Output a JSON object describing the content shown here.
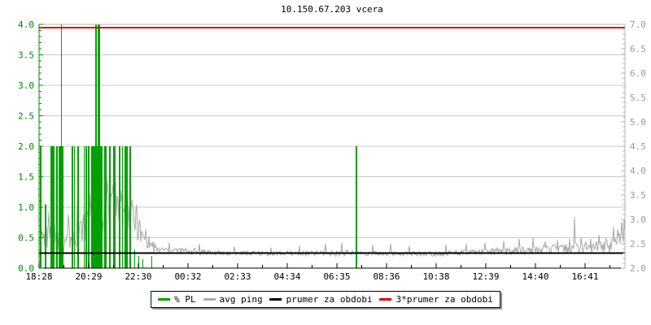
{
  "chart_data": {
    "type": "line",
    "title": "10.150.67.203 vcera",
    "x_tick_labels": [
      "18:28",
      "20:29",
      "22:30",
      "00:32",
      "02:33",
      "04:34",
      "06:35",
      "08:36",
      "10:38",
      "12:39",
      "14:40",
      "16:41"
    ],
    "left_axis": {
      "series": "% PL",
      "min": 0,
      "max": 4,
      "step": 0.5,
      "tick_labels": [
        "4.0",
        "3.5",
        "3.0",
        "2.5",
        "2.0",
        "1.5",
        "1.0",
        "0.5",
        "0.0"
      ],
      "color": "#008800"
    },
    "right_axis": {
      "series": "avg ping",
      "min": 2,
      "max": 7,
      "step": 0.5,
      "tick_labels": [
        "7.0",
        "6.5",
        "6.0",
        "5.5",
        "5.0",
        "4.5",
        "4.0",
        "3.5",
        "3.0",
        "2.5",
        "2.0"
      ],
      "color": "#9a9a9a"
    },
    "grid": true,
    "legend_position": "bottom-center",
    "legend": [
      {
        "label": "% PL",
        "color": "#00a000"
      },
      {
        "label": "avg ping",
        "color": "#aaaaaa"
      },
      {
        "label": "prumer za obdobi",
        "color": "#000000"
      },
      {
        "label": "3*prumer za obdobi",
        "color": "#e00000"
      }
    ],
    "series": [
      {
        "name": "% PL",
        "type": "bars",
        "axis": "left",
        "color": "#00a000",
        "bars": [
          [
            1,
            2,
            2
          ],
          [
            7,
            2,
            1.05
          ],
          [
            14,
            5,
            2
          ],
          [
            21,
            2,
            2
          ],
          [
            24,
            6,
            2
          ],
          [
            27,
            1,
            4
          ],
          [
            40,
            2,
            2
          ],
          [
            43,
            1,
            2
          ],
          [
            47,
            2,
            2
          ],
          [
            55,
            1,
            2
          ],
          [
            57,
            2,
            2
          ],
          [
            60,
            2,
            2
          ],
          [
            64,
            14,
            2
          ],
          [
            69,
            2,
            4
          ],
          [
            72,
            3,
            4
          ],
          [
            80,
            3,
            2
          ],
          [
            86,
            2,
            2
          ],
          [
            91,
            3,
            2
          ],
          [
            98,
            2,
            2
          ],
          [
            102,
            1,
            2
          ],
          [
            105,
            4,
            2
          ],
          [
            111,
            2,
            2
          ],
          [
            117,
            1,
            0.3
          ],
          [
            122,
            1,
            0.2
          ],
          [
            127,
            1,
            0.15
          ],
          [
            138,
            1,
            0.2
          ],
          [
            389,
            2,
            2
          ]
        ]
      },
      {
        "name": "avg ping",
        "type": "noisy-line",
        "axis": "right",
        "color": "#a8a8a8",
        "segments": [
          [
            0,
            8,
            2.7,
            2.6,
            0.18
          ],
          [
            8,
            20,
            2.6,
            2.65,
            0.28
          ],
          [
            20,
            32,
            2.65,
            2.6,
            0.3
          ],
          [
            32,
            46,
            2.6,
            2.7,
            0.28
          ],
          [
            46,
            56,
            2.7,
            2.85,
            0.3
          ],
          [
            56,
            64,
            2.85,
            3.4,
            0.4
          ],
          [
            64,
            71,
            3.4,
            4.0,
            0.35
          ],
          [
            71,
            79,
            4.0,
            3.2,
            0.45
          ],
          [
            79,
            90,
            3.2,
            3.1,
            0.45
          ],
          [
            90,
            97,
            3.3,
            3.4,
            0.4
          ],
          [
            97,
            106,
            3.4,
            2.95,
            0.4
          ],
          [
            106,
            113,
            2.95,
            3.15,
            0.35
          ],
          [
            113,
            126,
            3.15,
            2.65,
            0.3
          ],
          [
            126,
            142,
            2.65,
            2.42,
            0.14
          ],
          [
            142,
            210,
            2.38,
            2.33,
            0.07
          ],
          [
            210,
            330,
            2.31,
            2.3,
            0.05
          ],
          [
            330,
            400,
            2.3,
            2.31,
            0.06
          ],
          [
            400,
            480,
            2.3,
            2.3,
            0.05
          ],
          [
            480,
            555,
            2.3,
            2.33,
            0.06
          ],
          [
            555,
            610,
            2.33,
            2.37,
            0.08
          ],
          [
            610,
            648,
            2.37,
            2.4,
            0.09
          ],
          [
            648,
            668,
            2.4,
            2.42,
            0.11
          ],
          [
            668,
            700,
            2.42,
            2.45,
            0.12
          ],
          [
            700,
            714,
            2.45,
            2.6,
            0.15
          ],
          [
            714,
            720,
            2.6,
            2.75,
            0.18
          ]
        ],
        "spikes": [
          [
            12,
            3.15
          ],
          [
            17,
            3.4
          ],
          [
            36,
            3.1
          ],
          [
            47,
            3.35
          ],
          [
            70,
            4.35
          ],
          [
            75,
            4.2
          ],
          [
            84,
            3.85
          ],
          [
            94,
            3.75
          ],
          [
            101,
            3.6
          ],
          [
            109,
            3.45
          ],
          [
            120,
            3.3
          ],
          [
            131,
            2.8
          ],
          [
            160,
            2.52
          ],
          [
            197,
            2.5
          ],
          [
            240,
            2.44
          ],
          [
            285,
            2.42
          ],
          [
            320,
            2.46
          ],
          [
            352,
            2.5
          ],
          [
            372,
            2.52
          ],
          [
            410,
            2.48
          ],
          [
            432,
            2.5
          ],
          [
            455,
            2.46
          ],
          [
            500,
            2.48
          ],
          [
            525,
            2.5
          ],
          [
            548,
            2.52
          ],
          [
            571,
            2.56
          ],
          [
            590,
            2.6
          ],
          [
            607,
            2.62
          ],
          [
            622,
            2.55
          ],
          [
            637,
            2.58
          ],
          [
            652,
            2.6
          ],
          [
            658,
            3.05
          ],
          [
            666,
            2.62
          ],
          [
            678,
            2.6
          ],
          [
            688,
            2.68
          ],
          [
            697,
            2.6
          ],
          [
            706,
            2.85
          ],
          [
            711,
            2.8
          ],
          [
            716,
            2.95
          ],
          [
            719,
            3.0
          ]
        ],
        "noise_seed": 7
      },
      {
        "name": "prumer za obdobi",
        "type": "hline",
        "axis": "right",
        "color": "#000000",
        "value": 2.31,
        "stroke_width": 2
      },
      {
        "name": "3*prumer za obdobi",
        "type": "hline",
        "axis": "right",
        "color": "#e00000",
        "value": 6.93,
        "stroke_width": 2
      }
    ],
    "frame_colors": {
      "left": "#008800",
      "right": "#b4b4b4",
      "top": "#b4b4b4",
      "bottom": "#000000",
      "gridline": "#c8c8c8"
    }
  }
}
